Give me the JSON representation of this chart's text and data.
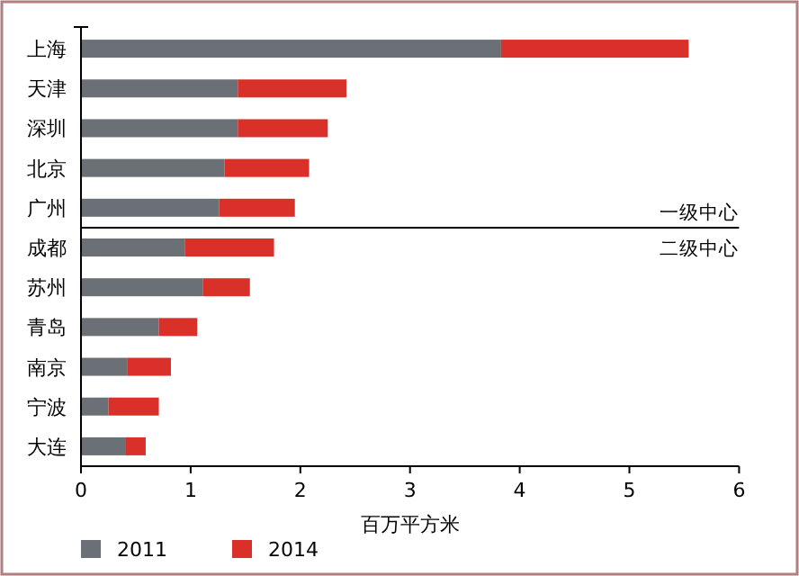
{
  "chart_data": {
    "type": "bar",
    "orientation": "horizontal",
    "stacked": true,
    "categories": [
      "上海",
      "天津",
      "深圳",
      "北京",
      "广州",
      "成都",
      "苏州",
      "青岛",
      "南京",
      "宁波",
      "大连"
    ],
    "series": [
      {
        "name": "2011",
        "color": "#6a7075",
        "values": [
          3.83,
          1.43,
          1.43,
          1.31,
          1.26,
          0.95,
          1.11,
          0.71,
          0.42,
          0.25,
          0.41
        ]
      },
      {
        "name": "2014",
        "color": "#d9302a",
        "values": [
          1.71,
          0.99,
          0.82,
          0.77,
          0.69,
          0.81,
          0.43,
          0.35,
          0.4,
          0.46,
          0.18
        ]
      }
    ],
    "xlabel": "百万平方米",
    "xlim": [
      0,
      6
    ],
    "xticks": [
      0,
      1,
      2,
      3,
      4,
      5,
      6
    ],
    "annotations": [
      "一级中心",
      "二级中心"
    ],
    "legend": "bottom",
    "grid": false
  }
}
